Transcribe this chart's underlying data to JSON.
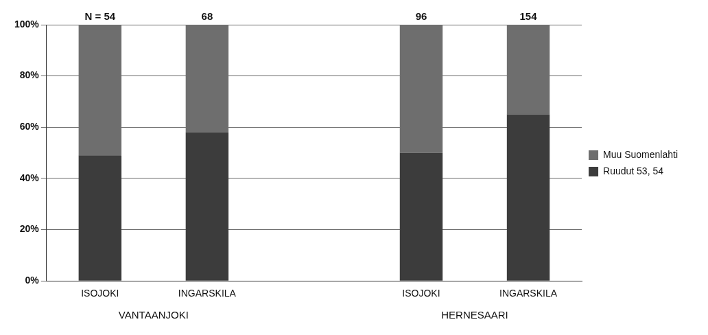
{
  "chart_data": {
    "type": "bar",
    "stacked": true,
    "categories": [
      "ISOJOKI",
      "INGARSKILA",
      null,
      "ISOJOKI",
      "INGARSKILA"
    ],
    "series": [
      {
        "name": "Ruudut 53, 54",
        "color": "#3c3c3c",
        "values": [
          49,
          58,
          null,
          50,
          65
        ]
      },
      {
        "name": "Muu Suomenlahti",
        "color": "#6e6e6e",
        "values": [
          51,
          42,
          null,
          50,
          35
        ]
      }
    ],
    "ylim": [
      0,
      100
    ],
    "yticks": [
      {
        "value": 0,
        "label": "0%"
      },
      {
        "value": 20,
        "label": "20%"
      },
      {
        "value": 40,
        "label": "40%"
      },
      {
        "value": 60,
        "label": "60%"
      },
      {
        "value": 80,
        "label": "80%"
      },
      {
        "value": 100,
        "label": "100%"
      }
    ],
    "annotations": [
      "N = 54",
      "68",
      "96",
      "154",
      "VANTAANJOKI",
      "HERNESAARI"
    ],
    "grid": "y",
    "legend": "right"
  }
}
